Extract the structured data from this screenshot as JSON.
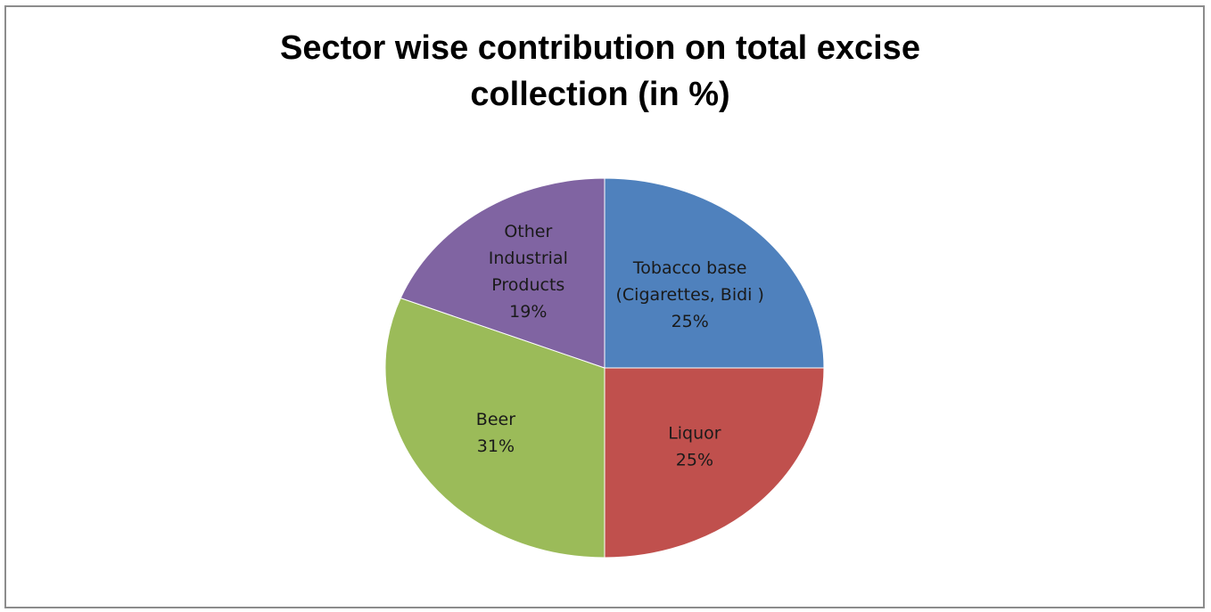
{
  "chart_data": {
    "type": "pie",
    "title_lines": [
      "Sector wise contribution on total excise",
      "collection (in %)"
    ],
    "slices": [
      {
        "label_lines": [
          "Tobacco base",
          "(Cigarettes, Bidi )"
        ],
        "value": 25,
        "value_text": "25%",
        "color": "#4F81BD"
      },
      {
        "label_lines": [
          "Liquor"
        ],
        "value": 25,
        "value_text": "25%",
        "color": "#C0504D"
      },
      {
        "label_lines": [
          "Beer"
        ],
        "value": 31,
        "value_text": "31%",
        "color": "#9BBB59"
      },
      {
        "label_lines": [
          "Other",
          "Industrial",
          "Products"
        ],
        "value": 19,
        "value_text": "19%",
        "color": "#8064A2"
      }
    ],
    "legend": "none"
  }
}
